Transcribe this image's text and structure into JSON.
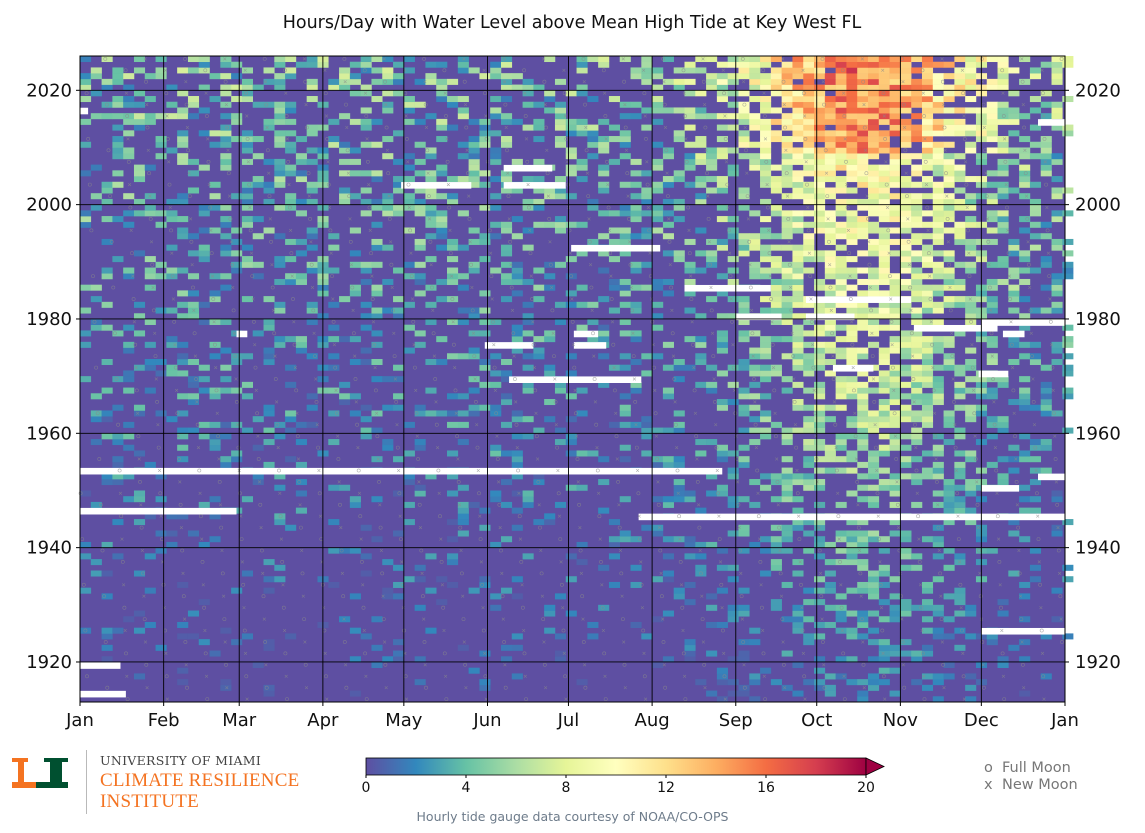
{
  "chart_data": {
    "type": "heatmap",
    "title": "Hours/Day with Water Level above Mean High Tide at Key West FL",
    "x_tick_labels": [
      "Jan",
      "Feb",
      "Mar",
      "Apr",
      "May",
      "Jun",
      "Jul",
      "Aug",
      "Sep",
      "Oct",
      "Nov",
      "Dec",
      "Jan"
    ],
    "x_day_of_year": [
      1,
      365
    ],
    "y_tick_values": [
      1920,
      1940,
      1960,
      1980,
      2000,
      2020
    ],
    "ylim": [
      1913,
      2025
    ],
    "y_ticks_on_both_sides": true,
    "grid": true,
    "gridline_color": "#000000",
    "cell_value_range": [
      0,
      20
    ],
    "colormap": "Spectral_r",
    "colorbar": {
      "ticks": [
        0,
        4,
        8,
        12,
        16,
        20
      ],
      "extend": "max",
      "colors": [
        "#5e4fa2",
        "#3288bd",
        "#66c2a5",
        "#abdda4",
        "#e6f598",
        "#ffffbf",
        "#fee08b",
        "#fdae61",
        "#f46d43",
        "#d53e4f",
        "#9e0142"
      ]
    },
    "trend_description_regions": {
      "seasonal_peak_months": [
        "Sep",
        "Oct",
        "Nov"
      ],
      "max_hours_recent_years": 20
    },
    "missing_data_gaps": [
      {
        "year": 1914,
        "start_day": 1,
        "end_day": 17
      },
      {
        "year": 1919,
        "start_day": 1,
        "end_day": 15
      },
      {
        "year": 1925,
        "start_day": 335,
        "end_day": 365
      },
      {
        "year": 1945,
        "start_day": 208,
        "end_day": 365
      },
      {
        "year": 1946,
        "start_day": 1,
        "end_day": 58
      },
      {
        "year": 1950,
        "start_day": 335,
        "end_day": 348
      },
      {
        "year": 1952,
        "start_day": 356,
        "end_day": 365
      },
      {
        "year": 1953,
        "start_day": 1,
        "end_day": 238
      },
      {
        "year": 1969,
        "start_day": 160,
        "end_day": 208
      },
      {
        "year": 1970,
        "start_day": 334,
        "end_day": 344
      },
      {
        "year": 1971,
        "start_day": 280,
        "end_day": 294
      },
      {
        "year": 1975,
        "start_day": 151,
        "end_day": 168
      },
      {
        "year": 1975,
        "start_day": 184,
        "end_day": 195
      },
      {
        "year": 1977,
        "start_day": 59,
        "end_day": 62
      },
      {
        "year": 1977,
        "start_day": 184,
        "end_day": 192
      },
      {
        "year": 1977,
        "start_day": 343,
        "end_day": 350
      },
      {
        "year": 1978,
        "start_day": 310,
        "end_day": 340
      },
      {
        "year": 1979,
        "start_day": 335,
        "end_day": 365
      },
      {
        "year": 1980,
        "start_day": 244,
        "end_day": 260
      },
      {
        "year": 1980,
        "start_day": 270,
        "end_day": 287
      },
      {
        "year": 1983,
        "start_day": 270,
        "end_day": 308
      },
      {
        "year": 1985,
        "start_day": 225,
        "end_day": 256
      },
      {
        "year": 1992,
        "start_day": 183,
        "end_day": 215
      },
      {
        "year": 2003,
        "start_day": 120,
        "end_day": 145
      },
      {
        "year": 2003,
        "start_day": 158,
        "end_day": 180
      },
      {
        "year": 2006,
        "start_day": 158,
        "end_day": 175
      },
      {
        "year": 2014,
        "start_day": 356,
        "end_day": 365
      },
      {
        "year": 2016,
        "start_day": 1,
        "end_day": 3
      }
    ]
  },
  "legend": {
    "full_moon_symbol": "o",
    "full_moon_label": "Full Moon",
    "new_moon_symbol": "x",
    "new_moon_label": "New Moon"
  },
  "branding": {
    "university": "UNIVERSITY OF MIAMI",
    "institute_line1": "CLIMATE RESILIENCE",
    "institute_line2": "INSTITUTE",
    "logo_letter": "U",
    "orange": "#f47321",
    "green": "#005030"
  },
  "credit": "Hourly tide gauge data courtesy of NOAA/CO-OPS"
}
